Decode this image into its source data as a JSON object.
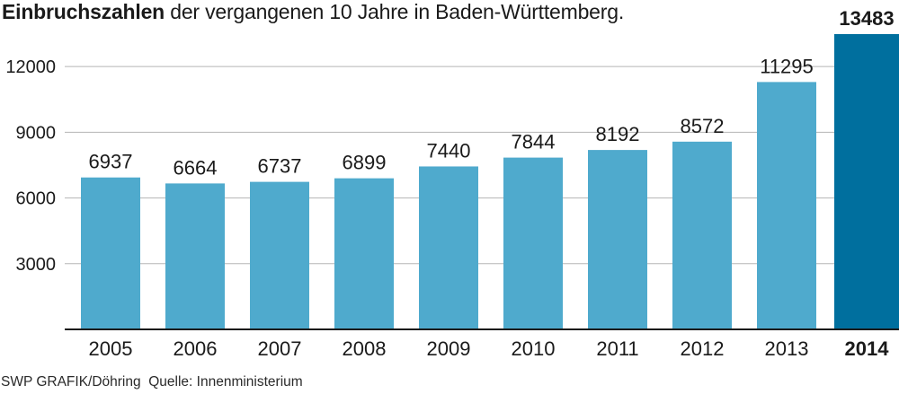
{
  "title": {
    "bold": "Einbruchszahlen",
    "rest": " der vergangenen 10 Jahre in Baden-Württemberg."
  },
  "footer": {
    "credit": "SWP GRAFIK/Döhring",
    "source": "Quelle: Innenministerium"
  },
  "colors": {
    "bar": "#4faacd",
    "highlight": "#006f9e",
    "grid": "#b5b5b5",
    "axis": "#1a1a1a"
  },
  "chart_data": {
    "type": "bar",
    "categories": [
      "2005",
      "2006",
      "2007",
      "2008",
      "2009",
      "2010",
      "2011",
      "2012",
      "2013",
      "2014"
    ],
    "values": [
      6937,
      6664,
      6737,
      6899,
      7440,
      7844,
      8192,
      8572,
      11295,
      13483
    ],
    "highlight_category": "2014",
    "yticks": [
      3000,
      6000,
      9000,
      12000
    ],
    "ylim": [
      0,
      13483
    ],
    "grid": true,
    "legend": "none",
    "data_labels": true
  }
}
